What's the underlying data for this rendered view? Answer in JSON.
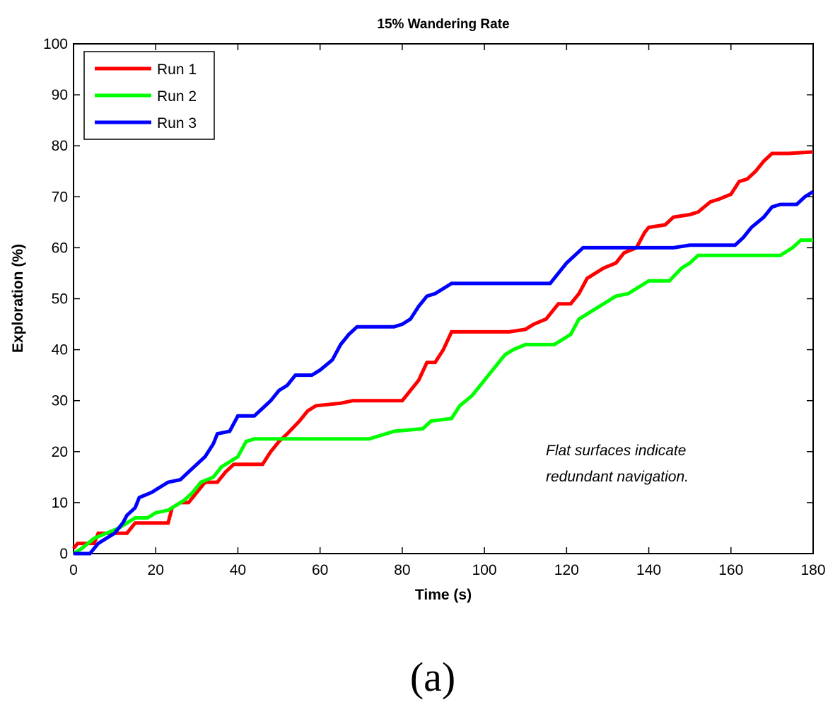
{
  "chart_data": {
    "type": "line",
    "title": "15% Wandering Rate",
    "xlabel": "Time (s)",
    "ylabel": "Exploration (%)",
    "xlim": [
      0,
      180
    ],
    "ylim": [
      0,
      100
    ],
    "xticks": [
      0,
      20,
      40,
      60,
      80,
      100,
      120,
      140,
      160,
      180
    ],
    "yticks": [
      0,
      10,
      20,
      30,
      40,
      50,
      60,
      70,
      80,
      90,
      100
    ],
    "grid": false,
    "legend_position": "top-left",
    "annotation": [
      "Flat surfaces indicate",
      "redundant navigation."
    ],
    "caption": "(a)",
    "series": [
      {
        "name": "Run 1",
        "color": "#ff0000",
        "points": [
          [
            0,
            1
          ],
          [
            1,
            2
          ],
          [
            5,
            2
          ],
          [
            6,
            4
          ],
          [
            13,
            4
          ],
          [
            15,
            6
          ],
          [
            23,
            6
          ],
          [
            24,
            9
          ],
          [
            26,
            10
          ],
          [
            28,
            10
          ],
          [
            30,
            12
          ],
          [
            32,
            14
          ],
          [
            35,
            14
          ],
          [
            37,
            16
          ],
          [
            39,
            17.5
          ],
          [
            46,
            17.5
          ],
          [
            48,
            20
          ],
          [
            50,
            22
          ],
          [
            52,
            23.5
          ],
          [
            55,
            26
          ],
          [
            57,
            28
          ],
          [
            59,
            29
          ],
          [
            65,
            29.5
          ],
          [
            68,
            30
          ],
          [
            80,
            30
          ],
          [
            82,
            32
          ],
          [
            84,
            34
          ],
          [
            86,
            37.5
          ],
          [
            88,
            37.5
          ],
          [
            90,
            40
          ],
          [
            92,
            43.5
          ],
          [
            106,
            43.5
          ],
          [
            110,
            44
          ],
          [
            112,
            45
          ],
          [
            115,
            46
          ],
          [
            117,
            48
          ],
          [
            118,
            49
          ],
          [
            121,
            49
          ],
          [
            123,
            51
          ],
          [
            125,
            54
          ],
          [
            129,
            56
          ],
          [
            132,
            57
          ],
          [
            134,
            59
          ],
          [
            137,
            60
          ],
          [
            139,
            63
          ],
          [
            140,
            64
          ],
          [
            144,
            64.5
          ],
          [
            146,
            66
          ],
          [
            150,
            66.5
          ],
          [
            152,
            67
          ],
          [
            155,
            69
          ],
          [
            157,
            69.5
          ],
          [
            160,
            70.5
          ],
          [
            162,
            73
          ],
          [
            164,
            73.5
          ],
          [
            166,
            75
          ],
          [
            168,
            77
          ],
          [
            170,
            78.5
          ],
          [
            174,
            78.5
          ],
          [
            180,
            78.8
          ]
        ]
      },
      {
        "name": "Run 2",
        "color": "#00ff00",
        "points": [
          [
            0,
            0
          ],
          [
            2,
            1
          ],
          [
            5,
            3
          ],
          [
            8,
            4
          ],
          [
            11,
            5
          ],
          [
            13,
            6
          ],
          [
            15,
            7
          ],
          [
            18,
            7
          ],
          [
            20,
            8
          ],
          [
            23,
            8.5
          ],
          [
            25,
            9.5
          ],
          [
            27,
            10.5
          ],
          [
            29,
            12
          ],
          [
            31,
            14
          ],
          [
            34,
            15
          ],
          [
            36,
            17
          ],
          [
            38,
            18
          ],
          [
            40,
            19
          ],
          [
            42,
            22
          ],
          [
            44,
            22.5
          ],
          [
            72,
            22.5
          ],
          [
            76,
            23.5
          ],
          [
            78,
            24
          ],
          [
            85,
            24.5
          ],
          [
            87,
            26
          ],
          [
            92,
            26.5
          ],
          [
            94,
            29
          ],
          [
            97,
            31
          ],
          [
            99,
            33
          ],
          [
            101,
            35
          ],
          [
            103,
            37
          ],
          [
            105,
            39
          ],
          [
            107,
            40
          ],
          [
            110,
            41
          ],
          [
            117,
            41
          ],
          [
            119,
            42
          ],
          [
            121,
            43
          ],
          [
            123,
            46
          ],
          [
            125,
            47
          ],
          [
            127,
            48
          ],
          [
            129,
            49
          ],
          [
            132,
            50.5
          ],
          [
            135,
            51
          ],
          [
            137,
            52
          ],
          [
            140,
            53.5
          ],
          [
            145,
            53.5
          ],
          [
            148,
            56
          ],
          [
            150,
            57
          ],
          [
            152,
            58.5
          ],
          [
            172,
            58.5
          ],
          [
            175,
            60
          ],
          [
            177,
            61.5
          ],
          [
            180,
            61.5
          ]
        ]
      },
      {
        "name": "Run 3",
        "color": "#0000ff",
        "points": [
          [
            0,
            0
          ],
          [
            4,
            0
          ],
          [
            6,
            2
          ],
          [
            8,
            3
          ],
          [
            10,
            4
          ],
          [
            12,
            6
          ],
          [
            13,
            7.5
          ],
          [
            15,
            9
          ],
          [
            16,
            11
          ],
          [
            19,
            12
          ],
          [
            21,
            13
          ],
          [
            23,
            14
          ],
          [
            26,
            14.5
          ],
          [
            28,
            16
          ],
          [
            30,
            17.5
          ],
          [
            32,
            19
          ],
          [
            34,
            21.5
          ],
          [
            35,
            23.5
          ],
          [
            38,
            24
          ],
          [
            40,
            27
          ],
          [
            44,
            27
          ],
          [
            46,
            28.5
          ],
          [
            48,
            30
          ],
          [
            50,
            32
          ],
          [
            52,
            33
          ],
          [
            54,
            35
          ],
          [
            58,
            35
          ],
          [
            60,
            36
          ],
          [
            63,
            38
          ],
          [
            65,
            41
          ],
          [
            67,
            43
          ],
          [
            69,
            44.5
          ],
          [
            78,
            44.5
          ],
          [
            80,
            45
          ],
          [
            82,
            46
          ],
          [
            84,
            48.5
          ],
          [
            86,
            50.5
          ],
          [
            88,
            51
          ],
          [
            90,
            52
          ],
          [
            92,
            53
          ],
          [
            116,
            53
          ],
          [
            118,
            55
          ],
          [
            120,
            57
          ],
          [
            122,
            58.5
          ],
          [
            124,
            60
          ],
          [
            146,
            60
          ],
          [
            150,
            60.5
          ],
          [
            161,
            60.5
          ],
          [
            163,
            62
          ],
          [
            165,
            64
          ],
          [
            168,
            66
          ],
          [
            170,
            68
          ],
          [
            172,
            68.5
          ],
          [
            176,
            68.5
          ],
          [
            178,
            70
          ],
          [
            180,
            71
          ]
        ]
      }
    ]
  }
}
